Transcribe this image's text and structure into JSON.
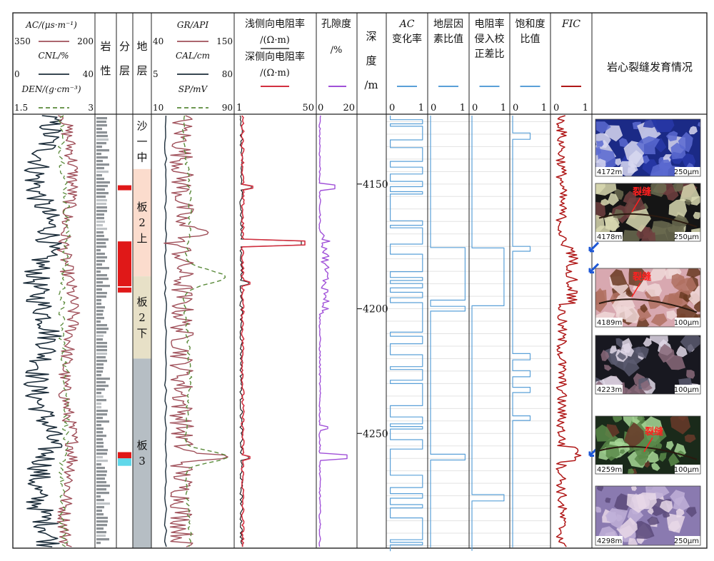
{
  "chart_data": {
    "type": "well-log",
    "depth_track": {
      "label": "深度/m",
      "label_parts": [
        "深",
        "度",
        "/m"
      ],
      "ylim": [
        4122,
        4296
      ],
      "ticks": [
        4150,
        4200,
        4250
      ]
    },
    "tracks": {
      "t1": {
        "curves": [
          {
            "name": "AC",
            "label": "AC/(μs·m⁻¹)",
            "range": [
              350,
              200
            ],
            "color": "#a0505a",
            "style": "solid"
          },
          {
            "name": "CNL",
            "label": "CNL/%",
            "range": [
              0,
              40
            ],
            "color": "#1c2d3a",
            "style": "solid"
          },
          {
            "name": "DEN",
            "label": "DEN/(g·cm⁻³)",
            "range": [
              1.5,
              3
            ],
            "color": "#5a8a3a",
            "style": "dashed"
          }
        ]
      },
      "lith": {
        "label": "岩性",
        "chars": [
          "岩",
          "性"
        ]
      },
      "layer": {
        "label": "分层",
        "chars": [
          "分",
          "层"
        ]
      },
      "strata": {
        "label": "地层",
        "chars": [
          "地",
          "层"
        ],
        "zones": [
          {
            "name": "沙一中",
            "chars": [
              "沙",
              "一",
              "中"
            ],
            "top": 4122,
            "bottom": 4144,
            "color": "#ffffff"
          },
          {
            "name": "板2上",
            "chars": [
              "板",
              "2",
              "上"
            ],
            "top": 4144,
            "bottom": 4187,
            "color": "#fbdccd"
          },
          {
            "name": "板2下",
            "chars": [
              "板",
              "2",
              "下"
            ],
            "top": 4187,
            "bottom": 4220,
            "color": "#e7e0c7"
          },
          {
            "name": "板3",
            "chars": [
              "板",
              "3"
            ],
            "top": 4220,
            "bottom": 4296,
            "color": "#b6bec4"
          }
        ]
      },
      "t2": {
        "curves": [
          {
            "name": "GR",
            "label": "GR/API",
            "range": [
              40,
              150
            ],
            "color": "#a0505a",
            "style": "solid"
          },
          {
            "name": "CAL",
            "label": "CAL/cm",
            "range": [
              5,
              80
            ],
            "color": "#1c2d3a",
            "style": "solid"
          },
          {
            "name": "SP",
            "label": "SP/mV",
            "range": [
              10,
              90
            ],
            "color": "#5a8a3a",
            "style": "dashed"
          }
        ]
      },
      "res": {
        "label1": "浅侧向电阻率",
        "unit1": "/(Ω·m)",
        "label2": "深侧向电阻率",
        "unit2": "/(Ω·m)",
        "range": [
          1,
          50
        ],
        "color": "#d23040"
      },
      "por": {
        "label": "孔隙度",
        "unit": "/%",
        "range": [
          0,
          20
        ],
        "color": "#a050d8"
      },
      "acr": {
        "label1": "AC",
        "label2": "变化率",
        "range": [
          0,
          1
        ],
        "color": "#5aa0d8"
      },
      "frm": {
        "label1": "地层因",
        "label2": "素比值",
        "range": [
          0,
          1
        ],
        "color": "#5aa0d8"
      },
      "rcc": {
        "label1": "电阻率",
        "label2": "侵入校",
        "label3": "正差比",
        "range": [
          0,
          1
        ],
        "color": "#5aa0d8"
      },
      "sat": {
        "label1": "饱和度",
        "label2": "比值",
        "range": [
          0,
          1
        ],
        "color": "#5aa0d8"
      },
      "fic": {
        "label": "FIC",
        "range": [
          0,
          1
        ],
        "color": "#b01818"
      },
      "core": {
        "label": "岩心裂缝发育情况"
      }
    },
    "fracture_markers": {
      "ticks": [
        0,
        1
      ],
      "zero": "0",
      "one": "1"
    },
    "core_images": [
      {
        "depth": "4172m",
        "scale": "250μm",
        "crack": "",
        "theme": "blue"
      },
      {
        "depth": "4178m",
        "scale": "250μm",
        "crack": "裂缝",
        "theme": "dark"
      },
      {
        "depth": "4189m",
        "scale": "100μm",
        "crack": "裂缝",
        "theme": "pink"
      },
      {
        "depth": "4223m",
        "scale": "100μm",
        "crack": "",
        "theme": "dark2"
      },
      {
        "depth": "4259m",
        "scale": "100μm",
        "crack": "裂缝",
        "theme": "green"
      },
      {
        "depth": "4298m",
        "scale": "250μm",
        "crack": "",
        "theme": "purple"
      }
    ],
    "layer_markers": [
      {
        "top": 4150.5,
        "bottom": 4152.5,
        "color": "#e01818"
      },
      {
        "top": 4173,
        "bottom": 4191,
        "color": "#e01818"
      },
      {
        "top": 4191.5,
        "bottom": 4193.5,
        "color": "#e01818"
      },
      {
        "top": 4257.5,
        "bottom": 4260,
        "color": "#e01818"
      },
      {
        "top": 4260,
        "bottom": 4263,
        "color": "#60d8ea"
      }
    ],
    "fracture_arrows": [
      4177.5,
      4186,
      4259.5
    ]
  }
}
